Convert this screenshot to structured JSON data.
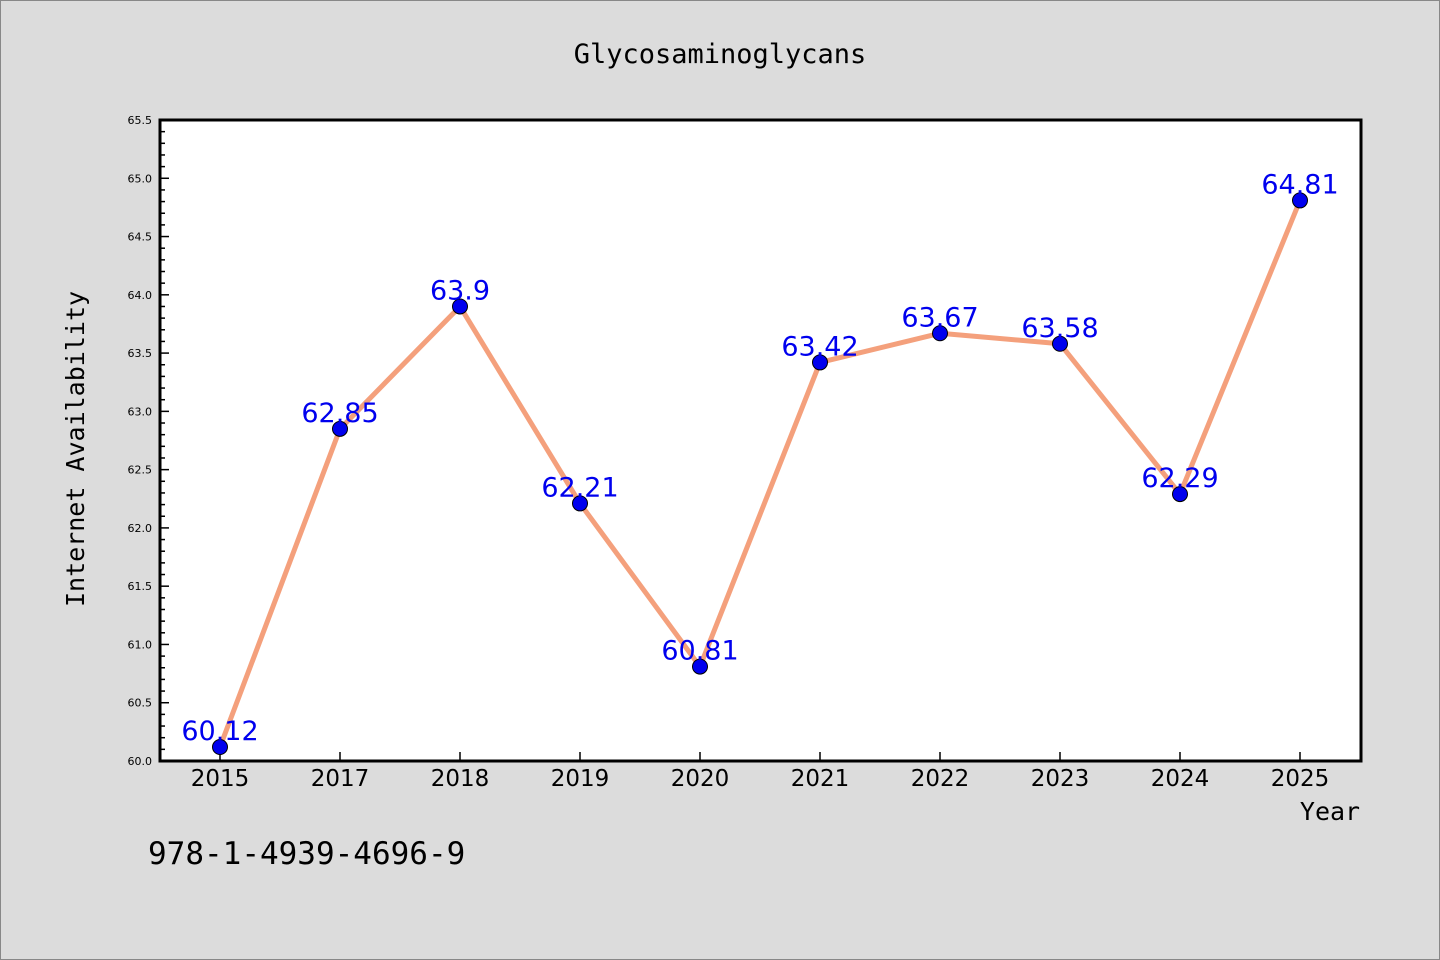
{
  "chart_data": {
    "type": "line",
    "title": "Glycosaminoglycans",
    "xlabel": "Year",
    "ylabel": "Internet Availability",
    "categories": [
      "2015",
      "2017",
      "2018",
      "2019",
      "2020",
      "2021",
      "2022",
      "2023",
      "2024",
      "2025"
    ],
    "series": [
      {
        "values": [
          60.12,
          62.85,
          63.9,
          62.21,
          60.81,
          63.42,
          63.67,
          63.58,
          62.29,
          64.81
        ],
        "data_labels": [
          "60.12",
          "62.85",
          "63.9",
          "62.21",
          "60.81",
          "63.42",
          "63.67",
          "63.58",
          "62.29",
          "64.81"
        ]
      }
    ],
    "ylim": [
      60.0,
      65.5
    ],
    "yticks": [
      "60.0",
      "60.5",
      "61.0",
      "61.5",
      "62.0",
      "62.5",
      "63.0",
      "63.5",
      "64.0",
      "64.5",
      "65.0",
      "65.5"
    ],
    "grid": false,
    "line_color": "#f4a07c",
    "marker_color": "#0000ee",
    "label_color": "#0000ee",
    "background_color": "#dcdcdc",
    "plot_background_color": "#ffffff"
  },
  "annotation": "978-1-4939-4696-9"
}
